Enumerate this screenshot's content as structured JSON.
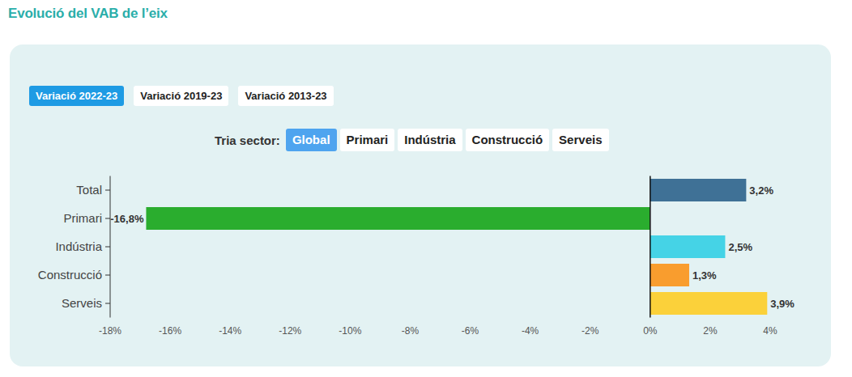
{
  "chart_data": {
    "type": "bar",
    "title": "Evolució del VAB de l’eix",
    "orientation": "horizontal",
    "categories": [
      "Total",
      "Primari",
      "Indústria",
      "Construcció",
      "Serveis"
    ],
    "values": [
      3.2,
      -16.8,
      2.5,
      1.3,
      3.9
    ],
    "value_labels": [
      "3,2%",
      "-16,8%",
      "2,5%",
      "1,3%",
      "3,9%"
    ],
    "colors": [
      "#3f7196",
      "#2aad2e",
      "#45d3e6",
      "#f99d2e",
      "#fbd13a"
    ],
    "xlim": [
      -18,
      4
    ],
    "xticks": [
      {
        "value": -18,
        "label": "-18%"
      },
      {
        "value": -16,
        "label": "-16%"
      },
      {
        "value": -14,
        "label": "-14%"
      },
      {
        "value": -12,
        "label": "-12%"
      },
      {
        "value": -10,
        "label": "-10%"
      },
      {
        "value": -8,
        "label": "-8%"
      },
      {
        "value": -6,
        "label": "-6%"
      },
      {
        "value": -4,
        "label": "-4%"
      },
      {
        "value": -2,
        "label": "-2%"
      },
      {
        "value": 0,
        "label": "0%"
      },
      {
        "value": 2,
        "label": "2%"
      },
      {
        "value": 4,
        "label": "4%"
      }
    ],
    "grid": false,
    "data_labels": true
  },
  "controls": {
    "period_buttons": [
      {
        "label": "Variació 2022-23",
        "active": true
      },
      {
        "label": "Variació 2019-23",
        "active": false
      },
      {
        "label": "Variació 2013-23",
        "active": false
      }
    ],
    "sector_label": "Tria sector:",
    "sector_buttons": [
      {
        "label": "Global",
        "active": true
      },
      {
        "label": "Primari",
        "active": false
      },
      {
        "label": "Indústria",
        "active": false
      },
      {
        "label": "Construcció",
        "active": false
      },
      {
        "label": "Serveis",
        "active": false
      }
    ]
  }
}
